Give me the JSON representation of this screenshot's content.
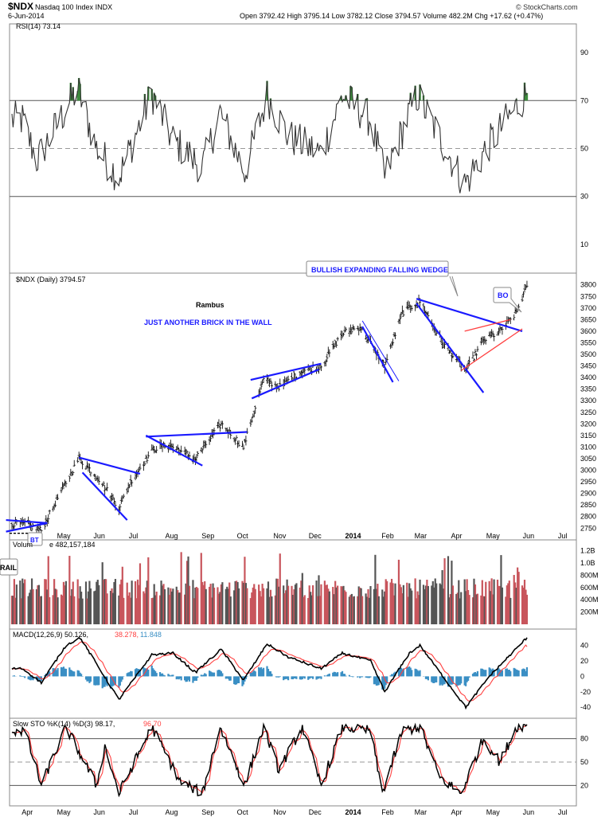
{
  "header": {
    "symbol": "$NDX",
    "name": "Nasdaq 100 Index",
    "exchange": "INDX",
    "date": "6-Jun-2014",
    "ohlc_text": "Open 3792.42   High 3795.14   Low 3782.12   Close 3794.57   Volume 482.2M   Chg +17.62 (+0.47%)",
    "watermark": "© StockCharts.com"
  },
  "panels": {
    "rsi_label": "RSI(14) 73.14",
    "price_label": "$NDX (Daily) 3794.57",
    "volume_label_visible": "Vo",
    "volume_label_value": "e 482,157,184",
    "macd_label_main": "MACD(12,26,9) 50.126,",
    "macd_label_signal": "38.278,",
    "macd_label_hist": "11.848",
    "sto_label_main": "Slow STO %K(14) %D(3) 98.17,",
    "sto_label_d": "96.70"
  },
  "annotations": {
    "author": "Rambus",
    "subtitle": "JUST ANOTHER BRICK IN THE WALL",
    "wedge_label": "BULLISH EXPANDING FALLING WEDGE",
    "bo": "BO",
    "bt": "BT",
    "rail": "RAIL"
  },
  "colors": {
    "trendline": "#1a1aff",
    "red_line": "#ff4040",
    "up_volume": "#c8555c",
    "down_volume": "#555555",
    "macd_hist": "#3a8fc4",
    "rsi_fill": "#3d8b3d"
  },
  "chart_data": {
    "type": "line",
    "months_price": [
      "May",
      "Jun",
      "Jul",
      "Aug",
      "Sep",
      "Oct",
      "Nov",
      "Dec",
      "2014",
      "Feb",
      "Mar",
      "Apr",
      "May",
      "Jun",
      "Jul"
    ],
    "months_bottom": [
      "Apr",
      "May",
      "Jun",
      "Jul",
      "Aug",
      "Sep",
      "Oct",
      "Nov",
      "Dec",
      "2014",
      "Feb",
      "Mar",
      "Apr",
      "May",
      "Jun",
      "Jul"
    ],
    "price": {
      "ylim": [
        2720,
        3830
      ],
      "yticks": [
        2750,
        2800,
        2850,
        2900,
        2950,
        3000,
        3050,
        3100,
        3150,
        3200,
        3250,
        3300,
        3350,
        3400,
        3450,
        3500,
        3550,
        3600,
        3650,
        3700,
        3750,
        3800
      ],
      "close_anchors": [
        [
          "2013-04-05",
          2770
        ],
        [
          "2013-04-19",
          2740
        ],
        [
          "2013-05-03",
          2880
        ],
        [
          "2013-05-21",
          3050
        ],
        [
          "2013-06-06",
          2970
        ],
        [
          "2013-06-24",
          2840
        ],
        [
          "2013-07-05",
          2960
        ],
        [
          "2013-07-23",
          3090
        ],
        [
          "2013-08-05",
          3110
        ],
        [
          "2013-08-28",
          3050
        ],
        [
          "2013-09-19",
          3200
        ],
        [
          "2013-10-08",
          3100
        ],
        [
          "2013-10-25",
          3390
        ],
        [
          "2013-11-08",
          3360
        ],
        [
          "2013-11-27",
          3430
        ],
        [
          "2013-12-13",
          3450
        ],
        [
          "2013-12-31",
          3590
        ],
        [
          "2014-01-15",
          3620
        ],
        [
          "2014-02-05",
          3450
        ],
        [
          "2014-02-20",
          3680
        ],
        [
          "2014-03-07",
          3730
        ],
        [
          "2014-03-26",
          3550
        ],
        [
          "2014-04-15",
          3430
        ],
        [
          "2014-04-30",
          3560
        ],
        [
          "2014-05-14",
          3600
        ],
        [
          "2014-05-28",
          3680
        ],
        [
          "2014-06-06",
          3794.57
        ]
      ]
    },
    "rsi": {
      "ylim": [
        0,
        100
      ],
      "yticks": [
        10,
        30,
        50,
        70,
        90
      ],
      "last": 73.14,
      "anchors": [
        [
          "2013-04-03",
          62
        ],
        [
          "2013-04-15",
          45
        ],
        [
          "2013-05-20",
          75
        ],
        [
          "2013-06-05",
          50
        ],
        [
          "2013-06-24",
          38
        ],
        [
          "2013-07-22",
          73
        ],
        [
          "2013-08-08",
          54
        ],
        [
          "2013-09-03",
          42
        ],
        [
          "2013-09-18",
          65
        ],
        [
          "2013-10-09",
          40
        ],
        [
          "2013-10-28",
          72
        ],
        [
          "2013-11-15",
          55
        ],
        [
          "2013-12-13",
          48
        ],
        [
          "2013-12-31",
          72
        ],
        [
          "2014-01-24",
          62
        ],
        [
          "2014-02-05",
          38
        ],
        [
          "2014-02-26",
          65
        ],
        [
          "2014-03-05",
          72
        ],
        [
          "2014-04-14",
          35
        ],
        [
          "2014-05-05",
          52
        ],
        [
          "2014-06-06",
          73.14
        ]
      ]
    },
    "volume": {
      "ylim": [
        0,
        1300000000
      ],
      "yticks_labels": [
        "200M",
        "400M",
        "600M",
        "800M",
        "1.0B",
        "1.2B"
      ],
      "yticks": [
        200000000,
        400000000,
        600000000,
        800000000,
        1000000000,
        1200000000
      ],
      "last": 482157184
    },
    "macd": {
      "ylim": [
        -48,
        55
      ],
      "yticks": [
        -40,
        -20,
        0,
        20,
        40
      ],
      "macd": 50.126,
      "signal": 38.278,
      "histogram": 11.848,
      "anchors": [
        [
          "2013-04-03",
          10
        ],
        [
          "2013-04-19",
          -8
        ],
        [
          "2013-05-10",
          40
        ],
        [
          "2013-05-22",
          50
        ],
        [
          "2013-06-24",
          -30
        ],
        [
          "2013-07-22",
          28
        ],
        [
          "2013-08-09",
          30
        ],
        [
          "2013-08-28",
          5
        ],
        [
          "2013-09-19",
          35
        ],
        [
          "2013-10-08",
          -5
        ],
        [
          "2013-10-28",
          42
        ],
        [
          "2013-11-15",
          25
        ],
        [
          "2013-12-13",
          10
        ],
        [
          "2013-12-31",
          30
        ],
        [
          "2014-01-24",
          20
        ],
        [
          "2014-02-05",
          -20
        ],
        [
          "2014-02-26",
          30
        ],
        [
          "2014-03-07",
          40
        ],
        [
          "2014-04-15",
          -40
        ],
        [
          "2014-05-05",
          0
        ],
        [
          "2014-06-06",
          50.126
        ]
      ]
    },
    "stochastic": {
      "ylim": [
        0,
        100
      ],
      "yticks": [
        20,
        50,
        80
      ],
      "k": 98.17,
      "d": 96.7,
      "anchors": [
        [
          "2013-04-05",
          90
        ],
        [
          "2013-04-19",
          20
        ],
        [
          "2013-05-10",
          95
        ],
        [
          "2013-06-05",
          20
        ],
        [
          "2013-06-12",
          70
        ],
        [
          "2013-06-24",
          10
        ],
        [
          "2013-07-22",
          95
        ],
        [
          "2013-08-15",
          25
        ],
        [
          "2013-09-03",
          10
        ],
        [
          "2013-09-18",
          95
        ],
        [
          "2013-10-09",
          20
        ],
        [
          "2013-10-25",
          95
        ],
        [
          "2013-11-07",
          40
        ],
        [
          "2013-11-27",
          95
        ],
        [
          "2013-12-13",
          20
        ],
        [
          "2013-12-31",
          95
        ],
        [
          "2014-01-24",
          90
        ],
        [
          "2014-02-03",
          10
        ],
        [
          "2014-02-20",
          90
        ],
        [
          "2014-03-07",
          95
        ],
        [
          "2014-03-24",
          30
        ],
        [
          "2014-04-11",
          10
        ],
        [
          "2014-04-30",
          80
        ],
        [
          "2014-05-14",
          50
        ],
        [
          "2014-05-28",
          95
        ],
        [
          "2014-06-06",
          98.17
        ]
      ]
    }
  }
}
